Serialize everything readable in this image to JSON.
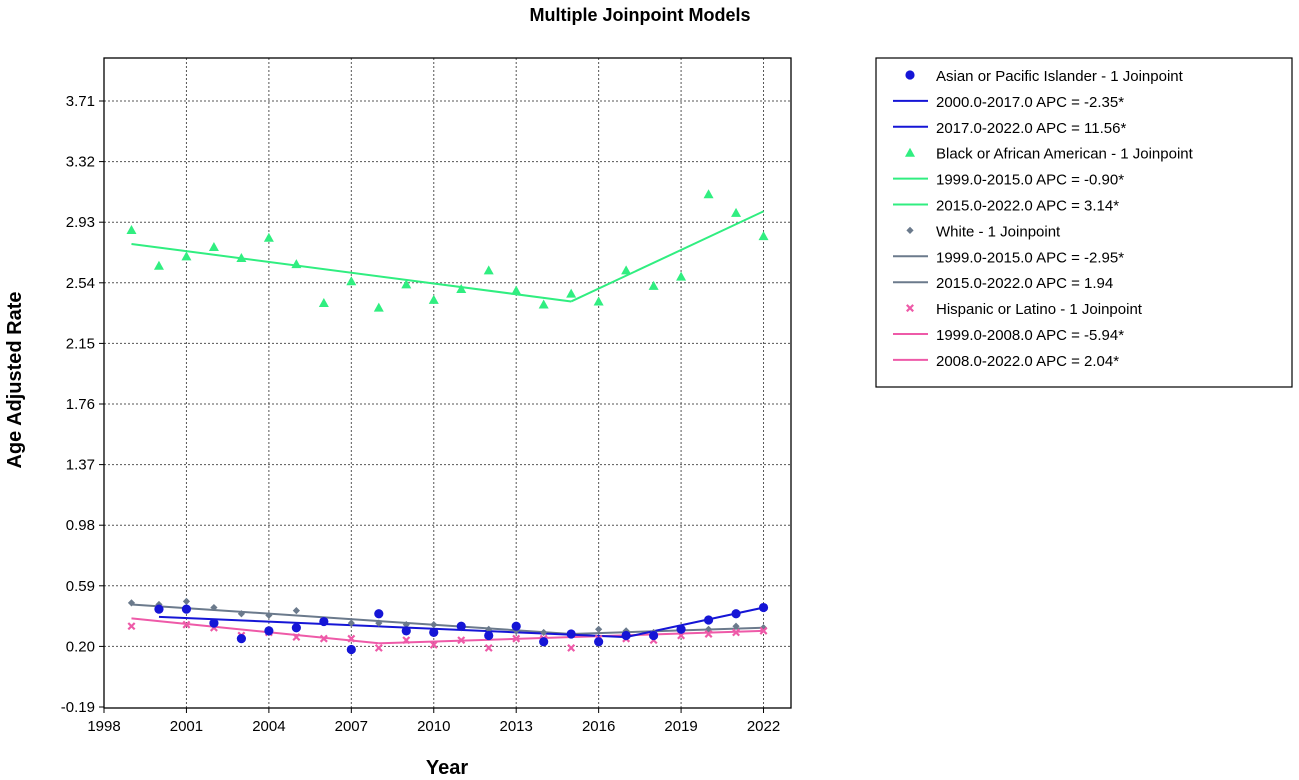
{
  "chart_data": {
    "type": "scatter",
    "title": "Multiple Joinpoint Models",
    "xlabel": "Year",
    "ylabel": "Age Adjusted Rate",
    "xlim": [
      1998,
      2023
    ],
    "ylim": [
      -0.19,
      4.1
    ],
    "x_ticks": [
      "1998",
      "2001",
      "2004",
      "2007",
      "2010",
      "2013",
      "2016",
      "2019",
      "2022"
    ],
    "y_ticks": [
      "-0.19",
      "0.20",
      "0.59",
      "0.98",
      "1.37",
      "1.76",
      "2.15",
      "2.54",
      "2.93",
      "3.32",
      "3.71"
    ],
    "grid": true,
    "legend_position": "right",
    "series": [
      {
        "name": "Asian or Pacific Islander - 1 Joinpoint",
        "color": "#1515d6",
        "marker": "circle",
        "x": [
          2000,
          2001,
          2002,
          2003,
          2004,
          2005,
          2006,
          2007,
          2008,
          2009,
          2010,
          2011,
          2012,
          2013,
          2014,
          2015,
          2016,
          2017,
          2018,
          2019,
          2020,
          2021,
          2022
        ],
        "y": [
          0.44,
          0.44,
          0.35,
          0.25,
          0.3,
          0.32,
          0.36,
          0.18,
          0.41,
          0.3,
          0.29,
          0.33,
          0.27,
          0.33,
          0.23,
          0.28,
          0.23,
          0.27,
          0.27,
          0.31,
          0.37,
          0.41,
          0.45
        ],
        "joinpoint_segments": [
          {
            "name": "2000.0-2017.0 APC  =  -2.35*",
            "x": [
              2000,
              2017
            ],
            "y": [
              0.39,
              0.26
            ]
          },
          {
            "name": "2017.0-2022.0 APC  =  11.56*",
            "x": [
              2017,
              2022
            ],
            "y": [
              0.26,
              0.45
            ]
          }
        ]
      },
      {
        "name": "Black or African American - 1 Joinpoint",
        "color": "#30ee80",
        "marker": "triangle",
        "x": [
          1999,
          2000,
          2001,
          2002,
          2003,
          2004,
          2005,
          2006,
          2007,
          2008,
          2009,
          2010,
          2011,
          2012,
          2013,
          2014,
          2015,
          2016,
          2017,
          2018,
          2019,
          2020,
          2021,
          2022
        ],
        "y": [
          2.88,
          2.65,
          2.71,
          2.77,
          2.7,
          2.83,
          2.66,
          2.41,
          2.55,
          2.38,
          2.53,
          2.43,
          2.5,
          2.62,
          2.49,
          2.4,
          2.47,
          2.42,
          2.62,
          2.52,
          2.58,
          3.11,
          2.99,
          2.84
        ],
        "joinpoint_segments": [
          {
            "name": "1999.0-2015.0 APC  =  -0.90*",
            "x": [
              1999,
              2015
            ],
            "y": [
              2.79,
              2.42
            ]
          },
          {
            "name": "2015.0-2022.0 APC  =  3.14*",
            "x": [
              2015,
              2022
            ],
            "y": [
              2.42,
              3.0
            ]
          }
        ]
      },
      {
        "name": "White - 1 Joinpoint",
        "color": "#6b7a8c",
        "marker": "diamond",
        "x": [
          1999,
          2000,
          2001,
          2002,
          2003,
          2004,
          2005,
          2006,
          2007,
          2008,
          2009,
          2010,
          2011,
          2012,
          2013,
          2014,
          2015,
          2016,
          2017,
          2018,
          2019,
          2020,
          2021,
          2022
        ],
        "y": [
          0.48,
          0.47,
          0.49,
          0.45,
          0.41,
          0.4,
          0.43,
          0.37,
          0.35,
          0.35,
          0.34,
          0.34,
          0.32,
          0.31,
          0.3,
          0.29,
          0.28,
          0.31,
          0.3,
          0.29,
          0.29,
          0.31,
          0.33,
          0.32
        ],
        "joinpoint_segments": [
          {
            "name": "1999.0-2015.0 APC  =  -2.95*",
            "x": [
              1999,
              2015
            ],
            "y": [
              0.47,
              0.28
            ]
          },
          {
            "name": "2015.0-2022.0 APC  =  1.94",
            "x": [
              2015,
              2022
            ],
            "y": [
              0.28,
              0.32
            ]
          }
        ]
      },
      {
        "name": "Hispanic or Latino - 1 Joinpoint",
        "color": "#ee5aa8",
        "marker": "x",
        "x": [
          1999,
          2000,
          2001,
          2002,
          2003,
          2004,
          2005,
          2006,
          2007,
          2008,
          2009,
          2010,
          2011,
          2012,
          2013,
          2014,
          2015,
          2016,
          2017,
          2018,
          2019,
          2020,
          2021,
          2022
        ],
        "y": [
          0.33,
          0.44,
          0.34,
          0.32,
          0.27,
          0.29,
          0.26,
          0.25,
          0.25,
          0.19,
          0.24,
          0.21,
          0.24,
          0.19,
          0.25,
          0.25,
          0.19,
          0.25,
          0.25,
          0.24,
          0.27,
          0.28,
          0.29,
          0.3
        ],
        "joinpoint_segments": [
          {
            "name": "1999.0-2008.0 APC  =  -5.94*",
            "x": [
              1999,
              2008
            ],
            "y": [
              0.38,
              0.22
            ]
          },
          {
            "name": "2008.0-2022.0 APC  =  2.04*",
            "x": [
              2008,
              2022
            ],
            "y": [
              0.22,
              0.3
            ]
          }
        ]
      }
    ]
  }
}
